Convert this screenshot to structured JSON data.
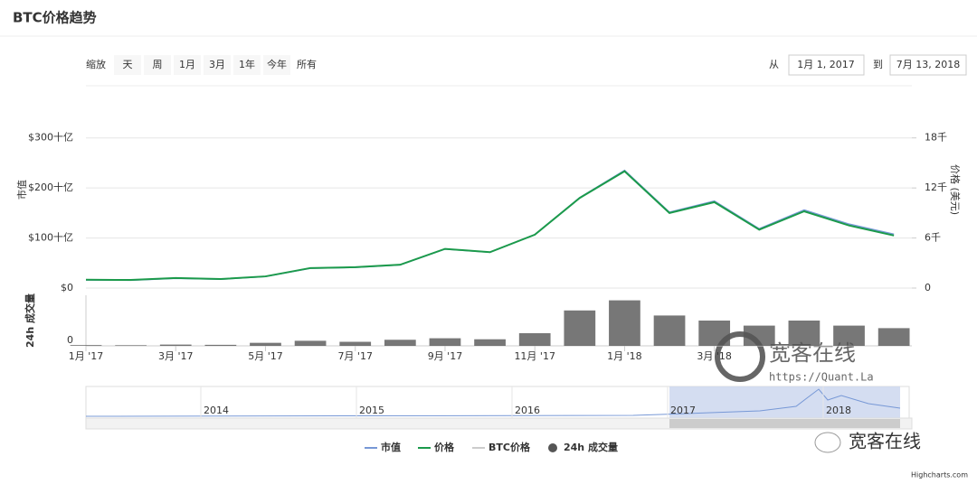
{
  "title": "BTC价格趋势",
  "range_selector": {
    "label": "缩放",
    "buttons": [
      "天",
      "周",
      "1月",
      "3月",
      "1年",
      "今年",
      "所有"
    ]
  },
  "date_range": {
    "from_label": "从",
    "from": "1月 1, 2017",
    "to_label": "到",
    "to": "7月 13, 2018"
  },
  "chart_data": {
    "type": "line",
    "x": [
      "2017-01",
      "2017-02",
      "2017-03",
      "2017-04",
      "2017-05",
      "2017-06",
      "2017-07",
      "2017-08",
      "2017-09",
      "2017-10",
      "2017-11",
      "2017-12",
      "2018-01",
      "2018-02",
      "2018-03",
      "2018-04",
      "2018-05",
      "2018-06",
      "2018-07"
    ],
    "xticks": [
      {
        "value": "2017-01",
        "label": "1月 '17"
      },
      {
        "value": "2017-03",
        "label": "3月 '17"
      },
      {
        "value": "2017-05",
        "label": "5月 '17"
      },
      {
        "value": "2017-07",
        "label": "7月 '17"
      },
      {
        "value": "2017-09",
        "label": "9月 '17"
      },
      {
        "value": "2017-11",
        "label": "11月 '17"
      },
      {
        "value": "2018-01",
        "label": "1月 '18"
      },
      {
        "value": "2018-03",
        "label": "3月 '18"
      }
    ],
    "ylim": [
      0,
      350
    ],
    "yticks": [
      {
        "value": 0,
        "label": "$0"
      },
      {
        "value": 100,
        "label": "$100十亿"
      },
      {
        "value": 200,
        "label": "$200十亿"
      },
      {
        "value": 300,
        "label": "$300十亿"
      }
    ],
    "y_label": "市值",
    "y2lim": [
      0,
      21000
    ],
    "y2ticks": [
      0,
      {
        "value": 6000,
        "label": "6千"
      },
      {
        "value": 12000,
        "label": "12千"
      },
      {
        "value": 18000,
        "label": "18千"
      }
    ],
    "y2_label": "价格 (美元)",
    "y3lim": [
      0,
      10
    ],
    "y3ticks": [
      0
    ],
    "y3_label": "24h 成交量",
    "grid": true,
    "series": [
      {
        "name": "市值",
        "color": "#7798d6",
        "values": [
          16.1,
          15.6,
          19.5,
          17.6,
          22.9,
          39.4,
          41.2,
          46.3,
          77.9,
          71.5,
          106.8,
          180.7,
          235,
          151.5,
          173.8,
          118.4,
          156,
          127.8,
          107.6
        ]
      },
      {
        "name": "价格",
        "color": "#1b9a4b",
        "axis": "y2",
        "values": [
          1000,
          970,
          1200,
          1080,
          1400,
          2400,
          2500,
          2800,
          4700,
          4300,
          6400,
          10800,
          14000,
          9000,
          10300,
          7000,
          9200,
          7500,
          6300
        ]
      },
      {
        "name": "BTC价格",
        "color": "#cccccc",
        "visible": false,
        "values": [
          null,
          null,
          null,
          null,
          null,
          null,
          null,
          null,
          null,
          null,
          null,
          null,
          null,
          null,
          null,
          null,
          null,
          null,
          null
        ]
      },
      {
        "name": "24h 成交量",
        "color": "#555555",
        "type": "column",
        "axis": "y3",
        "values": [
          0.15,
          0.12,
          0.25,
          0.2,
          0.6,
          1.0,
          0.8,
          1.2,
          1.5,
          1.3,
          2.5,
          7,
          9,
          6,
          5,
          4,
          5,
          4,
          3.5
        ]
      }
    ],
    "navigator": {
      "labels": [
        "2014",
        "2015",
        "2016",
        "2017",
        "2018"
      ]
    }
  },
  "watermark": {
    "name": "宽客在线",
    "url": "https://Quant.La",
    "wechat": "宽客在线"
  },
  "credits": "Highcharts.com"
}
